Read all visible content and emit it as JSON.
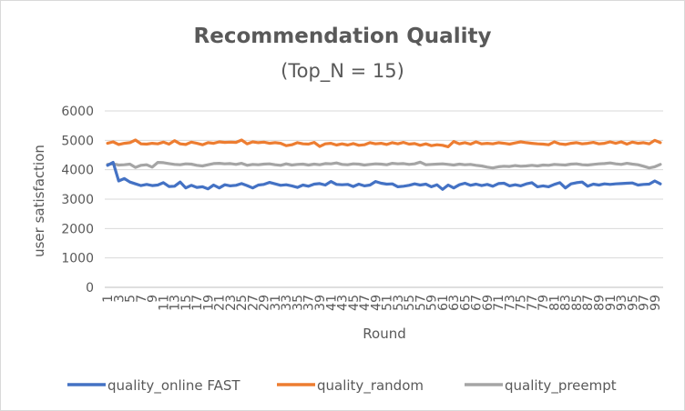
{
  "chart_data": {
    "type": "line",
    "title": "Recommendation Quality",
    "subtitle": "(Top_N = 15)",
    "xlabel": "Round",
    "ylabel": "user satisfaction",
    "ylim": [
      0,
      6000
    ],
    "yticks": [
      0,
      1000,
      2000,
      3000,
      4000,
      5000,
      6000
    ],
    "x": [
      1,
      2,
      3,
      4,
      5,
      6,
      7,
      8,
      9,
      10,
      11,
      12,
      13,
      14,
      15,
      16,
      17,
      18,
      19,
      20,
      21,
      22,
      23,
      24,
      25,
      26,
      27,
      28,
      29,
      30,
      31,
      32,
      33,
      34,
      35,
      36,
      37,
      38,
      39,
      40,
      41,
      42,
      43,
      44,
      45,
      46,
      47,
      48,
      49,
      50,
      51,
      52,
      53,
      54,
      55,
      56,
      57,
      58,
      59,
      60,
      61,
      62,
      63,
      64,
      65,
      66,
      67,
      68,
      69,
      70,
      71,
      72,
      73,
      74,
      75,
      76,
      77,
      78,
      79,
      80,
      81,
      82,
      83,
      84,
      85,
      86,
      87,
      88,
      89,
      90,
      91,
      92,
      93,
      94,
      95,
      96,
      97,
      98,
      99,
      100
    ],
    "xtick_labels": [
      "1",
      "3",
      "5",
      "7",
      "9",
      "11",
      "13",
      "15",
      "17",
      "19",
      "21",
      "23",
      "25",
      "27",
      "29",
      "31",
      "33",
      "35",
      "37",
      "39",
      "41",
      "43",
      "45",
      "47",
      "49",
      "51",
      "53",
      "55",
      "57",
      "59",
      "61",
      "63",
      "65",
      "67",
      "69",
      "71",
      "73",
      "75",
      "77",
      "79",
      "81",
      "83",
      "85",
      "87",
      "89",
      "91",
      "93",
      "95",
      "97",
      "99"
    ],
    "grid": true,
    "legend_position": "bottom",
    "series": [
      {
        "name": "quality_online FAST",
        "color": "#4472C4",
        "values": [
          4150,
          4250,
          3620,
          3700,
          3580,
          3520,
          3460,
          3500,
          3460,
          3480,
          3560,
          3430,
          3440,
          3580,
          3380,
          3470,
          3400,
          3420,
          3350,
          3480,
          3380,
          3490,
          3450,
          3470,
          3530,
          3460,
          3380,
          3480,
          3500,
          3570,
          3520,
          3470,
          3490,
          3450,
          3400,
          3480,
          3440,
          3510,
          3530,
          3480,
          3600,
          3500,
          3490,
          3500,
          3430,
          3510,
          3450,
          3480,
          3600,
          3540,
          3510,
          3520,
          3420,
          3440,
          3470,
          3520,
          3480,
          3510,
          3420,
          3490,
          3330,
          3480,
          3380,
          3490,
          3540,
          3470,
          3510,
          3460,
          3500,
          3440,
          3530,
          3540,
          3450,
          3490,
          3450,
          3520,
          3560,
          3420,
          3450,
          3420,
          3500,
          3560,
          3380,
          3520,
          3560,
          3580,
          3440,
          3510,
          3480,
          3520,
          3500,
          3520,
          3530,
          3540,
          3550,
          3480,
          3500,
          3510,
          3620,
          3520
        ]
      },
      {
        "name": "quality_random",
        "color": "#ED7D31",
        "values": [
          4900,
          4950,
          4860,
          4900,
          4920,
          5010,
          4880,
          4870,
          4900,
          4880,
          4940,
          4870,
          4990,
          4880,
          4860,
          4940,
          4900,
          4850,
          4920,
          4900,
          4950,
          4930,
          4940,
          4930,
          5010,
          4880,
          4950,
          4920,
          4940,
          4900,
          4920,
          4900,
          4820,
          4850,
          4920,
          4880,
          4870,
          4930,
          4790,
          4880,
          4900,
          4840,
          4880,
          4840,
          4890,
          4830,
          4850,
          4920,
          4880,
          4900,
          4860,
          4920,
          4880,
          4930,
          4870,
          4890,
          4830,
          4880,
          4820,
          4850,
          4830,
          4780,
          4960,
          4880,
          4920,
          4870,
          4950,
          4880,
          4900,
          4880,
          4920,
          4900,
          4870,
          4910,
          4950,
          4920,
          4900,
          4880,
          4870,
          4850,
          4950,
          4880,
          4860,
          4900,
          4920,
          4880,
          4900,
          4930,
          4880,
          4900,
          4950,
          4900,
          4950,
          4870,
          4940,
          4900,
          4920,
          4880,
          5000,
          4920
        ]
      },
      {
        "name": "quality_preempt",
        "color": "#A5A5A5",
        "values": [
          4180,
          4200,
          4160,
          4170,
          4190,
          4080,
          4150,
          4170,
          4090,
          4250,
          4240,
          4210,
          4180,
          4170,
          4200,
          4190,
          4150,
          4130,
          4170,
          4210,
          4220,
          4200,
          4210,
          4180,
          4220,
          4150,
          4180,
          4170,
          4190,
          4200,
          4170,
          4150,
          4200,
          4160,
          4180,
          4190,
          4160,
          4190,
          4170,
          4210,
          4200,
          4230,
          4180,
          4170,
          4200,
          4190,
          4160,
          4180,
          4200,
          4190,
          4170,
          4220,
          4200,
          4210,
          4180,
          4200,
          4260,
          4170,
          4180,
          4190,
          4200,
          4180,
          4160,
          4190,
          4170,
          4180,
          4150,
          4130,
          4090,
          4060,
          4100,
          4120,
          4110,
          4140,
          4120,
          4130,
          4150,
          4130,
          4160,
          4150,
          4180,
          4170,
          4160,
          4190,
          4200,
          4170,
          4160,
          4180,
          4200,
          4210,
          4230,
          4200,
          4180,
          4220,
          4190,
          4170,
          4120,
          4060,
          4100,
          4180
        ]
      }
    ]
  }
}
